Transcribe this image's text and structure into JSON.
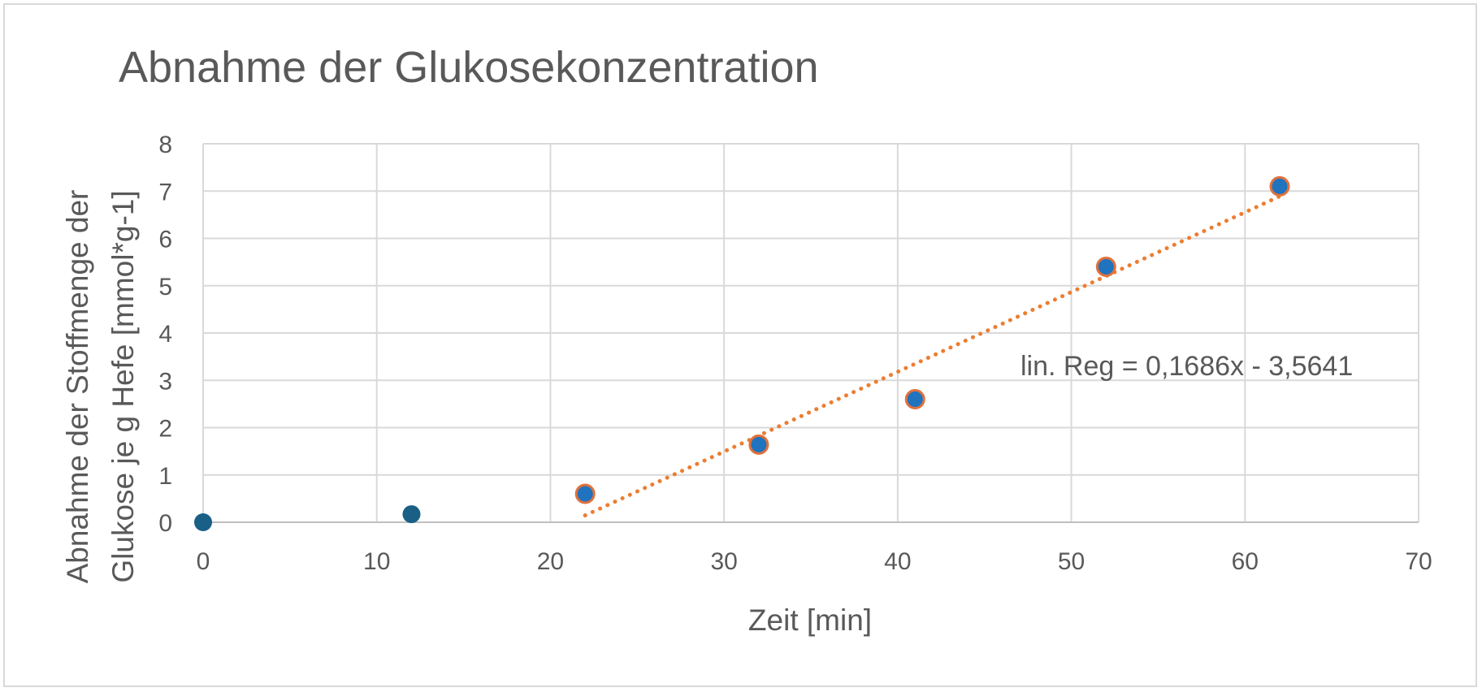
{
  "chart_data": {
    "type": "scatter",
    "title": "Abnahme der Glukosekonzentration",
    "xlabel": "Zeit [min]",
    "ylabel_lines": [
      "Abnahme der Stoffmenge der",
      "Glukose je g Hefe [mmol*g-1]"
    ],
    "xlim": [
      0,
      70
    ],
    "ylim": [
      0,
      8
    ],
    "x_ticks": [
      "0",
      "10",
      "20",
      "30",
      "40",
      "50",
      "60",
      "70"
    ],
    "y_ticks": [
      "0",
      "1",
      "2",
      "3",
      "4",
      "5",
      "6",
      "7",
      "8"
    ],
    "grid": true,
    "series": [
      {
        "color": "#1a5f86",
        "points": [
          {
            "x": 0,
            "y": 0.0
          },
          {
            "x": 12,
            "y": 0.17
          }
        ]
      },
      {
        "color": "#1f73bf",
        "edge_color": "#e2713a",
        "points": [
          {
            "x": 22,
            "y": 0.6
          },
          {
            "x": 32,
            "y": 1.64
          },
          {
            "x": 41,
            "y": 2.6
          },
          {
            "x": 52,
            "y": 5.4
          },
          {
            "x": 62,
            "y": 7.1
          }
        ]
      }
    ],
    "trendline": {
      "label": "lin. Reg = 0,1686x - 3,5641",
      "slope": 0.1686,
      "intercept": -3.5641,
      "x_range": [
        22,
        62
      ],
      "color": "#ed7d31",
      "style": "dotted"
    }
  }
}
